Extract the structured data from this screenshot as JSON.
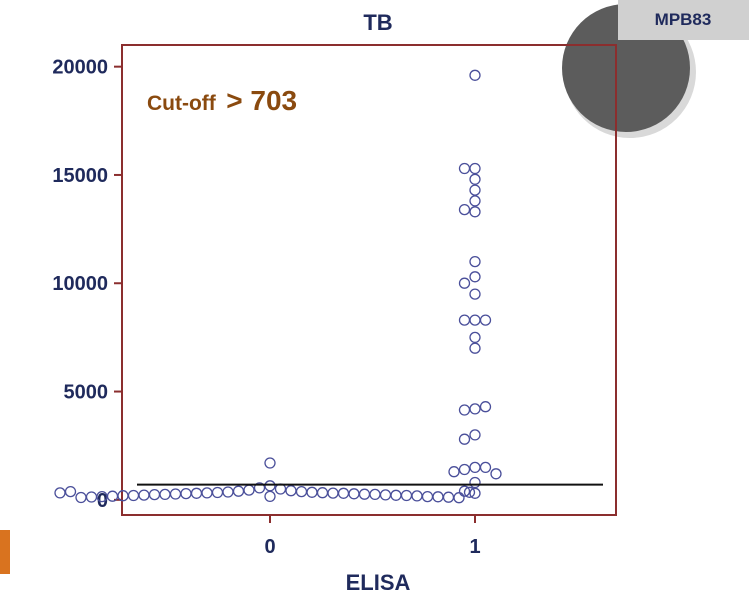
{
  "colors": {
    "frame": "#8b2e2e",
    "axis_text": "#1f2a5c",
    "point_stroke": "#4a4f9a",
    "cutoff_line": "#111111",
    "annotation": "#8a4a0f",
    "circle_fill": "#5c5c5c",
    "circle_ring": "#d9d9d9",
    "badge_bg": "#d0d0d0",
    "orange_accent": "#d9731f"
  },
  "badge": {
    "label": "MPB83"
  },
  "annotation": {
    "prefix": "Cut-off",
    "value_text": "> 703"
  },
  "chart_data": {
    "type": "scatter",
    "title": "TB",
    "xlabel": "ELISA",
    "ylabel": "",
    "categories": [
      "0",
      "1"
    ],
    "ylim": [
      -700,
      21000
    ],
    "yticks": [
      0,
      5000,
      10000,
      15000,
      20000
    ],
    "ytick_labels": [
      "0",
      "5000",
      "10000",
      "15000",
      "20000"
    ],
    "cutoff": 703,
    "grid": false,
    "legend": "none",
    "series": [
      {
        "category": "0",
        "values": [
          1700,
          650,
          550,
          500,
          450,
          420,
          400,
          380,
          360,
          350,
          340,
          330,
          320,
          310,
          300,
          300,
          290,
          280,
          270,
          260,
          250,
          250,
          240,
          230,
          220,
          210,
          200,
          200,
          190,
          180,
          170,
          160,
          150,
          150,
          140,
          130,
          120,
          110,
          100,
          380,
          350,
          320
        ]
      },
      {
        "category": "1",
        "values": [
          19600,
          15300,
          15300,
          14800,
          14300,
          13800,
          13300,
          13400,
          11000,
          10300,
          10000,
          9500,
          8300,
          8300,
          8300,
          7500,
          7000,
          4200,
          4150,
          4300,
          3000,
          2800,
          1500,
          1400,
          1500,
          1300,
          1200,
          800,
          400,
          300
        ]
      }
    ]
  }
}
